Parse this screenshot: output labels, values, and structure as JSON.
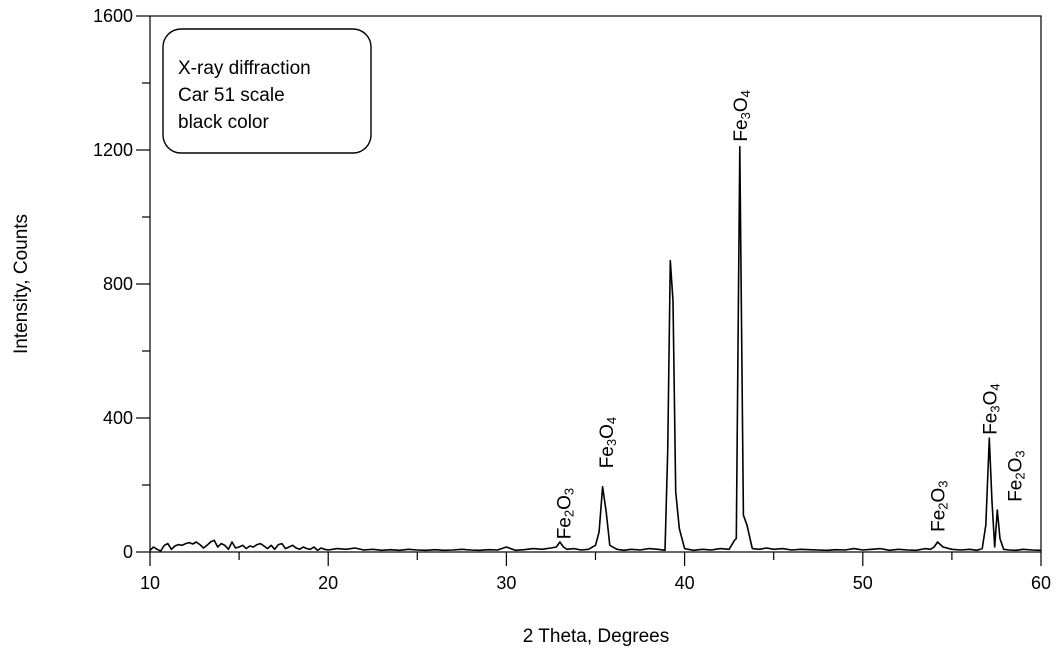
{
  "chart_data": {
    "type": "line",
    "title": "",
    "xlabel": "2 Theta, Degrees",
    "ylabel": "Intensity, Counts",
    "xlim": [
      10,
      60
    ],
    "ylim": [
      0,
      1600
    ],
    "x_ticks": [
      10,
      20,
      30,
      40,
      50,
      60
    ],
    "y_ticks": [
      0,
      400,
      800,
      1200,
      1600
    ],
    "x_tick_labels": [
      "10",
      "20",
      "30",
      "40",
      "50",
      "60"
    ],
    "y_tick_labels": [
      "0",
      "400",
      "800",
      "1200",
      "1600"
    ],
    "grid": false,
    "legend_box": {
      "placement": "top-left",
      "lines": [
        "X-ray diffraction",
        "Car 51 scale",
        "black color"
      ]
    },
    "series": [
      {
        "x": [
          10,
          10.2,
          10.4,
          10.6,
          10.8,
          11,
          11.2,
          11.4,
          11.6,
          11.8,
          12,
          12.2,
          12.4,
          12.6,
          12.8,
          13,
          13.2,
          13.4,
          13.6,
          13.8,
          14,
          14.2,
          14.4,
          14.6,
          14.8,
          15,
          15.2,
          15.4,
          15.6,
          15.8,
          16,
          16.2,
          16.4,
          16.6,
          16.8,
          17,
          17.2,
          17.4,
          17.6,
          17.8,
          18,
          18.2,
          18.4,
          18.6,
          18.8,
          19,
          19.2,
          19.4,
          19.6,
          19.8,
          20,
          20.5,
          21,
          21.5,
          22,
          22.5,
          23,
          23.5,
          24,
          24.5,
          25,
          25.5,
          26,
          26.5,
          27,
          27.5,
          28,
          28.5,
          29,
          29.5,
          30,
          30.5,
          31,
          31.5,
          32,
          32.5,
          32.8,
          33,
          33.2,
          33.4,
          33.8,
          34.2,
          34.6,
          35,
          35.2,
          35.4,
          35.6,
          35.8,
          36.2,
          36.6,
          37,
          37.5,
          38,
          38.5,
          38.9,
          39.05,
          39.2,
          39.35,
          39.5,
          39.7,
          40,
          40.5,
          41,
          41.5,
          42,
          42.5,
          42.8,
          42.9,
          43.1,
          43.3,
          43.5,
          43.8,
          44.2,
          44.6,
          45,
          45.5,
          46,
          46.5,
          47,
          47.5,
          48,
          48.5,
          49,
          49.5,
          50,
          50.5,
          51,
          51.5,
          52,
          52.5,
          53,
          53.5,
          53.8,
          54,
          54.2,
          54.5,
          55,
          55.5,
          56,
          56.4,
          56.7,
          56.9,
          57.1,
          57.25,
          57.4,
          57.55,
          57.7,
          57.9,
          58.2,
          58.6,
          59,
          59.5,
          60
        ],
        "y": [
          5,
          15,
          8,
          3,
          20,
          25,
          8,
          18,
          22,
          20,
          25,
          28,
          24,
          30,
          22,
          12,
          20,
          30,
          35,
          15,
          25,
          20,
          8,
          30,
          12,
          15,
          20,
          10,
          18,
          15,
          22,
          25,
          18,
          10,
          20,
          8,
          22,
          25,
          10,
          15,
          20,
          12,
          8,
          15,
          10,
          8,
          15,
          5,
          12,
          8,
          6,
          10,
          8,
          12,
          6,
          8,
          5,
          7,
          5,
          8,
          6,
          5,
          7,
          5,
          6,
          8,
          6,
          5,
          7,
          6,
          15,
          5,
          7,
          10,
          8,
          12,
          15,
          30,
          15,
          8,
          10,
          6,
          8,
          20,
          60,
          195,
          120,
          20,
          8,
          5,
          8,
          6,
          10,
          8,
          5,
          300,
          870,
          750,
          180,
          70,
          10,
          5,
          8,
          6,
          10,
          8,
          35,
          40,
          1210,
          110,
          80,
          10,
          8,
          12,
          8,
          10,
          6,
          8,
          7,
          6,
          5,
          7,
          6,
          10,
          6,
          8,
          10,
          5,
          8,
          6,
          5,
          10,
          8,
          15,
          30,
          15,
          8,
          6,
          8,
          5,
          10,
          80,
          340,
          150,
          15,
          125,
          40,
          8,
          6,
          5,
          8,
          6,
          5
        ]
      }
    ],
    "annotations": [
      {
        "x": 33.2,
        "y": 38,
        "base": "Fe",
        "sub1": "2",
        "mid": "O",
        "sub2": "3"
      },
      {
        "x": 35.6,
        "y": 250,
        "base": "Fe",
        "sub1": "3",
        "mid": "O",
        "sub2": "4"
      },
      {
        "x": 43.1,
        "y": 1225,
        "base": "Fe",
        "sub1": "3",
        "mid": "O",
        "sub2": "4"
      },
      {
        "x": 54.2,
        "y": 60,
        "base": "Fe",
        "sub1": "2",
        "mid": "O",
        "sub2": "3"
      },
      {
        "x": 57.1,
        "y": 350,
        "base": "Fe",
        "sub1": "3",
        "mid": "O",
        "sub2": "4"
      },
      {
        "x": 58.5,
        "y": 150,
        "base": "Fe",
        "sub1": "2",
        "mid": "O",
        "sub2": "3"
      }
    ],
    "colors": {
      "line": "#000000",
      "axis": "#000000",
      "background": "#ffffff"
    }
  }
}
